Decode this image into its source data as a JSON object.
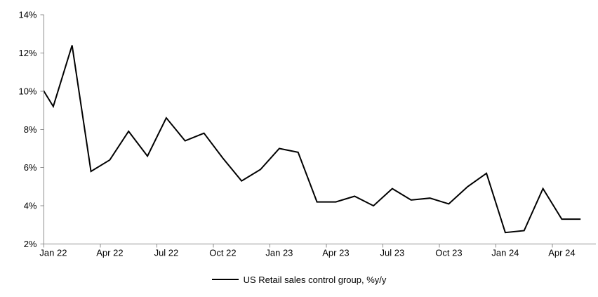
{
  "legend": {
    "label": "US Retail sales control group, %y/y"
  },
  "colors": {
    "line": "#000000",
    "axis": "#8e8e8e",
    "text": "#000000",
    "background": "#ffffff"
  },
  "chart_data": {
    "type": "line",
    "title": "",
    "xlabel": "",
    "ylabel": "",
    "grid": false,
    "legend_position": "bottom",
    "legend_entries": [
      "US Retail sales control group, %y/y"
    ],
    "ylim": [
      2,
      14
    ],
    "y_tick_values": [
      2,
      4,
      6,
      8,
      10,
      12,
      14
    ],
    "y_tick_labels": [
      "2%",
      "4%",
      "6%",
      "8%",
      "10%",
      "12%",
      "14%"
    ],
    "x_tick_labels": [
      "Jan 22",
      "Apr 22",
      "Jul 22",
      "Oct 22",
      "Jan 23",
      "Apr 23",
      "Jul 23",
      "Oct 23",
      "Jan 24",
      "Apr 24"
    ],
    "clipped_start_point": {
      "x": "Dec 21",
      "value": 10.8
    },
    "series": [
      {
        "name": "US Retail sales control group, %y/y",
        "color": "#000000",
        "x": [
          "Jan 22",
          "Feb 22",
          "Mar 22",
          "Apr 22",
          "May 22",
          "Jun 22",
          "Jul 22",
          "Aug 22",
          "Sep 22",
          "Oct 22",
          "Nov 22",
          "Dec 22",
          "Jan 23",
          "Feb 23",
          "Mar 23",
          "Apr 23",
          "May 23",
          "Jun 23",
          "Jul 23",
          "Aug 23",
          "Sep 23",
          "Oct 23",
          "Nov 23",
          "Dec 23",
          "Jan 24",
          "Feb 24",
          "Mar 24",
          "Apr 24",
          "May 24"
        ],
        "values": [
          9.2,
          12.4,
          5.8,
          6.4,
          7.9,
          6.6,
          8.6,
          7.4,
          7.8,
          6.5,
          5.3,
          5.9,
          7.0,
          6.8,
          4.2,
          4.2,
          4.5,
          4.0,
          4.9,
          4.3,
          4.4,
          4.1,
          5.0,
          5.7,
          2.6,
          2.7,
          4.9,
          3.3,
          3.3
        ]
      }
    ]
  }
}
